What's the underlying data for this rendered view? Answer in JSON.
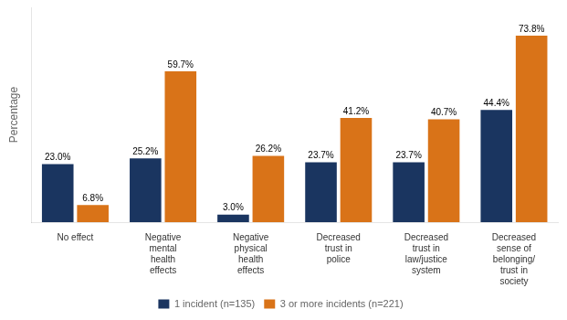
{
  "chart_data": {
    "type": "bar",
    "categories": [
      "No effect",
      "Negative\nmental\nhealth\neffects",
      "Negative\nphysical\nhealth\neffects",
      "Decreased\ntrust in\npolice",
      "Decreased\ntrust in\nlaw/justice\nsystem",
      "Decreased\nsense of\nbelonging/\ntrust in\nsociety"
    ],
    "series": [
      {
        "name": "1 incident (n=135)",
        "color": "#1a3560",
        "values": [
          23.0,
          25.2,
          3.0,
          23.7,
          23.7,
          44.4
        ],
        "value_labels": [
          "23.0%",
          "25.2%",
          "3.0%",
          "23.7%",
          "23.7%",
          "44.4%"
        ]
      },
      {
        "name": "3 or more incidents (n=221)",
        "color": "#d97318",
        "values": [
          6.8,
          59.7,
          26.2,
          41.2,
          40.7,
          73.8
        ],
        "value_labels": [
          "6.8%",
          "59.7%",
          "26.2%",
          "41.2%",
          "40.7%",
          "73.8%"
        ]
      }
    ],
    "ylabel": "Percentage",
    "ylim": [
      0,
      85
    ],
    "grid": false,
    "legend": "bottom",
    "data_labels": true,
    "tick_labels": "x"
  }
}
